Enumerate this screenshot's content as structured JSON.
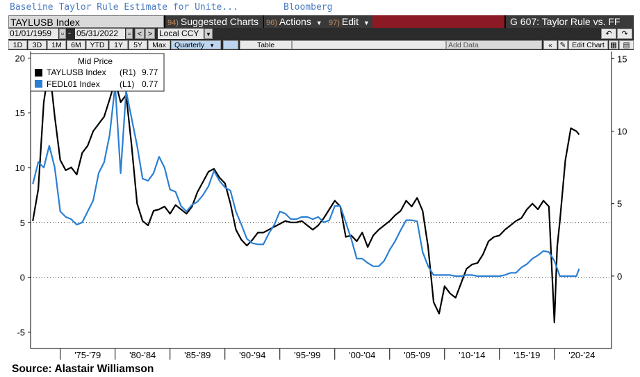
{
  "header": {
    "window_title": "Baseline Taylor Rule Estimate for Unite...",
    "source_label": "Bloomberg",
    "ticker": "TAYLUSB Index",
    "suggested_num": "94)",
    "suggested_label": "Suggested Charts",
    "actions_num": "96)",
    "actions_label": "Actions",
    "edit_num": "97)",
    "edit_label": "Edit",
    "chart_title": "G 607: Taylor Rule vs. FF"
  },
  "toolbar": {
    "start_date": "01/01/1959",
    "end_date": "05/31/2022",
    "currency": "Local CCY",
    "periods": [
      "1D",
      "3D",
      "1M",
      "6M",
      "YTD",
      "1Y",
      "5Y",
      "Max"
    ],
    "frequency": "Quarterly",
    "table_label": "Table",
    "add_data_label": "Add Data",
    "edit_chart_label": "Edit Chart"
  },
  "legend": {
    "heading": "Mid Price",
    "items": [
      {
        "label": "TAYLUSB Index",
        "axis": "(R1)",
        "value": "9.77",
        "color": "#000000"
      },
      {
        "label": "FEDL01 Index",
        "axis": "(L1)",
        "value": "0.77",
        "color": "#2a7fd4"
      }
    ]
  },
  "footer": {
    "source": "Source: Alastair Williamson"
  },
  "chart_data": {
    "type": "line",
    "title": "",
    "x_categories": [
      "'75-'79",
      "'80-'84",
      "'85-'89",
      "'90-'94",
      "'95-'99",
      "'00-'04",
      "'05-'09",
      "'10-'14",
      "'15-'19",
      "'20-'24"
    ],
    "left_axis": {
      "ticks": [
        20,
        15,
        10,
        5,
        0,
        -5
      ],
      "range": [
        -6.5,
        20.6
      ]
    },
    "right_axis": {
      "ticks": [
        15,
        10,
        5,
        0
      ],
      "range": [
        -5,
        15.5
      ]
    },
    "grid": "horizontal dotted at 0 and 5",
    "legend_position": "top-left",
    "series": [
      {
        "name": "TAYLUSB Index",
        "axis": "right",
        "color": "#000000",
        "x": [
          1972.5,
          1973,
          1973.5,
          1974,
          1974.5,
          1975,
          1975.5,
          1976,
          1976.5,
          1977,
          1977.5,
          1978,
          1978.5,
          1979,
          1979.5,
          1980,
          1980.5,
          1981,
          1981.5,
          1982,
          1982.5,
          1983,
          1983.5,
          1984,
          1984.5,
          1985,
          1985.5,
          1986,
          1986.5,
          1987,
          1987.5,
          1988,
          1988.5,
          1989,
          1989.5,
          1990,
          1990.5,
          1991,
          1991.5,
          1992,
          1992.5,
          1993,
          1993.5,
          1994,
          1994.5,
          1995,
          1995.5,
          1996,
          1996.5,
          1997,
          1997.5,
          1998,
          1998.5,
          1999,
          1999.5,
          2000,
          2000.5,
          2001,
          2001.5,
          2002,
          2002.5,
          2003,
          2003.5,
          2004,
          2004.5,
          2005,
          2005.5,
          2006,
          2006.5,
          2007,
          2007.5,
          2008,
          2008.5,
          2009,
          2009.5,
          2010,
          2010.5,
          2011,
          2011.5,
          2012,
          2012.5,
          2013,
          2013.5,
          2014,
          2014.5,
          2015,
          2015.5,
          2016,
          2016.5,
          2017,
          2017.5,
          2018,
          2018.5,
          2019,
          2019.5,
          2020,
          2020.25,
          2020.5,
          2021,
          2021.5,
          2022,
          2022.25
        ],
        "y": [
          3.8,
          6.0,
          12.0,
          14.5,
          11.0,
          8.0,
          7.3,
          7.5,
          7.0,
          8.5,
          9.0,
          10.0,
          10.5,
          11.0,
          12.2,
          13.5,
          12.0,
          12.5,
          9.0,
          5.0,
          3.8,
          3.5,
          4.5,
          4.6,
          4.8,
          4.3,
          4.9,
          4.6,
          4.3,
          4.8,
          5.8,
          6.5,
          7.2,
          7.4,
          6.8,
          6.4,
          5.0,
          3.2,
          2.5,
          2.1,
          2.5,
          3.0,
          3.0,
          3.2,
          3.4,
          3.6,
          3.8,
          3.7,
          3.7,
          3.8,
          3.5,
          3.2,
          3.5,
          4.0,
          4.6,
          5.2,
          4.8,
          2.7,
          2.8,
          2.4,
          3.0,
          2.0,
          2.8,
          3.2,
          3.5,
          3.8,
          4.2,
          4.5,
          5.2,
          4.8,
          5.4,
          4.5,
          2.0,
          -1.8,
          -2.6,
          -0.7,
          -1.2,
          -1.5,
          -0.5,
          0.5,
          0.8,
          0.9,
          1.5,
          2.4,
          2.7,
          2.8,
          3.2,
          3.5,
          3.8,
          4.0,
          4.6,
          5.0,
          4.6,
          5.2,
          4.8,
          -3.2,
          2.0,
          3.8,
          8.0,
          10.2,
          10.0,
          9.77
        ]
      },
      {
        "name": "FEDL01 Index",
        "axis": "left",
        "color": "#2a7fd4",
        "x": [
          1972.5,
          1973,
          1973.5,
          1974,
          1974.5,
          1975,
          1975.5,
          1976,
          1976.5,
          1977,
          1977.5,
          1978,
          1978.5,
          1979,
          1979.5,
          1980,
          1980.5,
          1981,
          1981.5,
          1982,
          1982.5,
          1983,
          1983.5,
          1984,
          1984.5,
          1985,
          1985.5,
          1986,
          1986.5,
          1987,
          1987.5,
          1988,
          1988.5,
          1989,
          1989.5,
          1990,
          1990.5,
          1991,
          1991.5,
          1992,
          1992.5,
          1993,
          1993.5,
          1994,
          1994.5,
          1995,
          1995.5,
          1996,
          1996.5,
          1997,
          1997.5,
          1998,
          1998.5,
          1999,
          1999.5,
          2000,
          2000.5,
          2001,
          2001.5,
          2002,
          2002.5,
          2003,
          2003.5,
          2004,
          2004.5,
          2005,
          2005.5,
          2006,
          2006.5,
          2007,
          2007.5,
          2008,
          2008.5,
          2009,
          2009.5,
          2010,
          2010.5,
          2011,
          2011.5,
          2012,
          2012.5,
          2013,
          2013.5,
          2014,
          2014.5,
          2015,
          2015.5,
          2016,
          2016.5,
          2017,
          2017.5,
          2018,
          2018.5,
          2019,
          2019.5,
          2020,
          2020.5,
          2021,
          2021.5,
          2022,
          2022.25
        ],
        "y": [
          8.5,
          10.5,
          10.0,
          12.0,
          10.0,
          6.0,
          5.5,
          5.3,
          4.8,
          5.0,
          6.0,
          7.0,
          9.5,
          10.5,
          13.0,
          17.5,
          9.5,
          17.0,
          14.5,
          12.0,
          9.0,
          8.8,
          9.5,
          11.0,
          10.0,
          8.0,
          7.8,
          6.5,
          6.0,
          6.6,
          6.9,
          7.5,
          8.3,
          9.7,
          8.8,
          8.2,
          7.9,
          6.0,
          4.8,
          3.5,
          3.1,
          3.0,
          3.0,
          4.0,
          4.8,
          6.0,
          5.8,
          5.3,
          5.3,
          5.5,
          5.5,
          5.3,
          5.5,
          5.0,
          5.2,
          6.5,
          6.5,
          5.0,
          3.5,
          1.7,
          1.7,
          1.3,
          1.0,
          1.0,
          1.5,
          2.5,
          3.3,
          4.3,
          5.2,
          5.2,
          5.1,
          2.3,
          1.0,
          0.2,
          0.2,
          0.2,
          0.2,
          0.1,
          0.1,
          0.2,
          0.2,
          0.1,
          0.1,
          0.1,
          0.1,
          0.1,
          0.2,
          0.4,
          0.4,
          0.9,
          1.2,
          1.7,
          2.0,
          2.4,
          2.3,
          1.5,
          0.1,
          0.1,
          0.1,
          0.1,
          0.77
        ]
      }
    ]
  }
}
